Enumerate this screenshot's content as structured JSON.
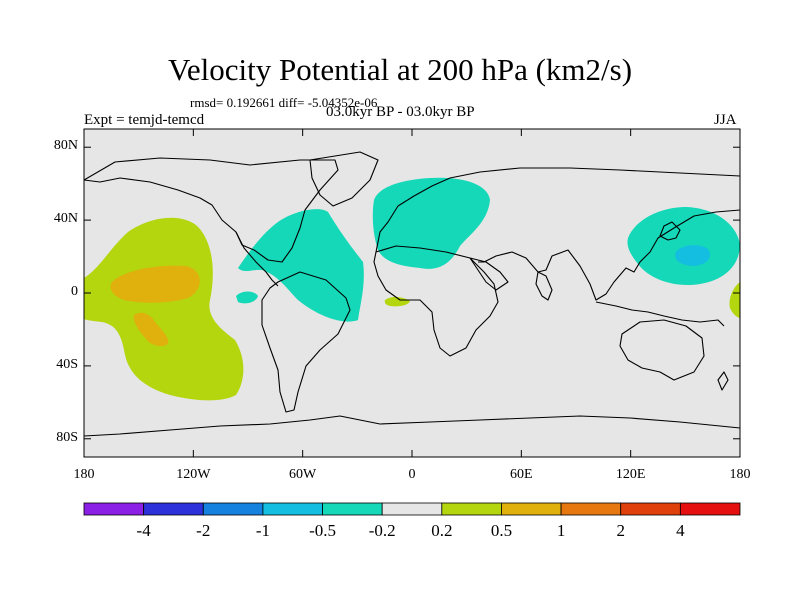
{
  "title": "Velocity Potential at 200 hPa (km2/s)",
  "stats_text": "rmsd= 0.192661  diff= -5.04352e-06",
  "experiment": "Expt = temjd-temcd",
  "period": "03.0kyr BP - 03.0kyr BP",
  "season": "JJA",
  "map": {
    "lat_labels": [
      "80N",
      "40N",
      "0",
      "40S",
      "80S"
    ],
    "lat_values": [
      80,
      40,
      0,
      -40,
      -80
    ],
    "lon_labels": [
      "180",
      "120W",
      "60W",
      "0",
      "60E",
      "120E",
      "180"
    ],
    "lon_values": [
      -180,
      -120,
      -60,
      0,
      60,
      120,
      180
    ],
    "lat_range": [
      -90,
      90
    ],
    "lon_range": [
      -180,
      180
    ],
    "background_color": "#e6e6e6"
  },
  "colorbar": {
    "labels": [
      "-4",
      "-2",
      "-1",
      "-0.5",
      "-0.2",
      "0.2",
      "0.5",
      "1",
      "2",
      "4"
    ],
    "colors": [
      "#8c1fe6",
      "#2d31d9",
      "#1582e0",
      "#13bee0",
      "#14d8b8",
      "#e6e6e6",
      "#b4d60f",
      "#e0b00c",
      "#e6780f",
      "#e0400c",
      "#e60f0f"
    ]
  }
}
